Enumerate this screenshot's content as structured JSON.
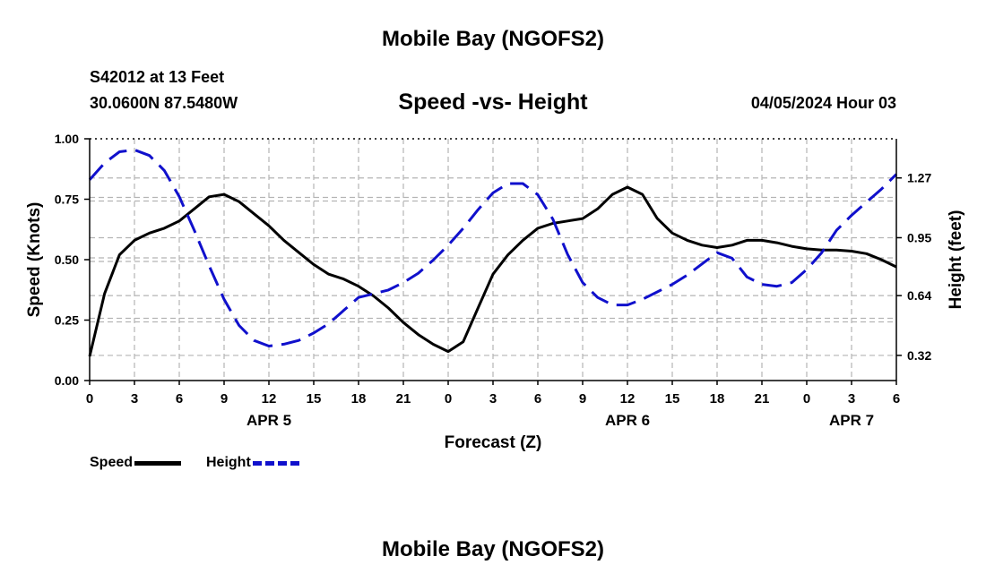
{
  "header": {
    "title": "Mobile Bay (NGOFS2)",
    "station": "S42012 at 13 Feet",
    "coords": "30.0600N  87.5480W",
    "chart_title": "Speed -vs- Height",
    "datetime": "04/05/2024 Hour 03"
  },
  "footer": {
    "title": "Mobile Bay (NGOFS2)"
  },
  "legend": {
    "speed_label": "Speed",
    "height_label": "Height"
  },
  "colors": {
    "speed": "#000000",
    "height": "#1010cc",
    "grid": "#b4b4b4"
  },
  "chart_data": {
    "type": "line",
    "xlabel": "Forecast (Z)",
    "ylabel": "Speed (Knots)",
    "y2label": "Height (feet)",
    "xlim": [
      0,
      54
    ],
    "ylim": [
      0,
      1
    ],
    "y2lim": [
      0.1854,
      1.4796
    ],
    "x_ticks": [
      0,
      3,
      6,
      9,
      12,
      15,
      18,
      21,
      24,
      27,
      30,
      33,
      36,
      39,
      42,
      45,
      48,
      51,
      54
    ],
    "x_tick_labels": [
      "0",
      "3",
      "6",
      "9",
      "12",
      "15",
      "18",
      "21",
      "0",
      "3",
      "6",
      "9",
      "12",
      "15",
      "18",
      "21",
      "0",
      "3",
      "6"
    ],
    "day_labels": [
      {
        "x": 12,
        "label": "APR 5"
      },
      {
        "x": 36,
        "label": "APR 6"
      },
      {
        "x": 51,
        "label": "APR 7"
      }
    ],
    "y_ticks": [
      0,
      0.25,
      0.5,
      0.75,
      1
    ],
    "y_tick_labels": [
      "0.00",
      "0.25",
      "0.50",
      "0.75",
      "1.00"
    ],
    "y2_ticks": [
      0.32,
      0.64,
      0.95,
      1.27
    ],
    "y2_tick_labels": [
      "0.32",
      "0.64",
      "0.95",
      "1.27"
    ],
    "grid": true,
    "legend_position": "bottom-left",
    "series": [
      {
        "name": "Speed",
        "axis": "left",
        "style": "solid",
        "x": [
          0,
          1,
          2,
          3,
          4,
          5,
          6,
          7,
          8,
          9,
          10,
          11,
          12,
          13,
          14,
          15,
          16,
          17,
          18,
          19,
          20,
          21,
          22,
          23,
          24,
          25,
          26,
          27,
          28,
          29,
          30,
          31,
          32,
          33,
          34,
          35,
          36,
          37,
          38,
          39,
          40,
          41,
          42,
          43,
          44,
          45,
          46,
          47,
          48,
          49,
          50,
          51,
          52,
          53,
          54
        ],
        "values": [
          0.1,
          0.36,
          0.52,
          0.58,
          0.61,
          0.63,
          0.66,
          0.71,
          0.76,
          0.77,
          0.74,
          0.69,
          0.64,
          0.58,
          0.53,
          0.48,
          0.44,
          0.42,
          0.39,
          0.35,
          0.3,
          0.24,
          0.19,
          0.15,
          0.12,
          0.16,
          0.3,
          0.44,
          0.52,
          0.58,
          0.63,
          0.65,
          0.66,
          0.67,
          0.71,
          0.77,
          0.8,
          0.77,
          0.67,
          0.61,
          0.58,
          0.56,
          0.55,
          0.56,
          0.58,
          0.58,
          0.57,
          0.555,
          0.545,
          0.54,
          0.54,
          0.535,
          0.525,
          0.5,
          0.47
        ]
      },
      {
        "name": "Height",
        "axis": "right",
        "style": "dashed",
        "x": [
          0,
          1,
          2,
          3,
          4,
          5,
          6,
          7,
          8,
          9,
          10,
          11,
          12,
          13,
          14,
          15,
          16,
          17,
          18,
          19,
          20,
          21,
          22,
          23,
          24,
          25,
          26,
          27,
          28,
          29,
          30,
          31,
          32,
          33,
          34,
          35,
          36,
          37,
          38,
          39,
          40,
          41,
          42,
          43,
          44,
          45,
          46,
          47,
          48,
          49,
          50,
          51,
          52,
          53,
          54
        ],
        "values": [
          1.26,
          1.35,
          1.41,
          1.42,
          1.39,
          1.31,
          1.17,
          0.99,
          0.8,
          0.62,
          0.48,
          0.4,
          0.37,
          0.38,
          0.4,
          0.44,
          0.49,
          0.56,
          0.63,
          0.65,
          0.67,
          0.71,
          0.76,
          0.83,
          0.91,
          1.0,
          1.1,
          1.19,
          1.24,
          1.24,
          1.18,
          1.05,
          0.86,
          0.71,
          0.63,
          0.59,
          0.59,
          0.62,
          0.66,
          0.7,
          0.75,
          0.81,
          0.87,
          0.84,
          0.74,
          0.7,
          0.69,
          0.71,
          0.78,
          0.87,
          0.99,
          1.07,
          1.14,
          1.21,
          1.29
        ]
      }
    ]
  }
}
